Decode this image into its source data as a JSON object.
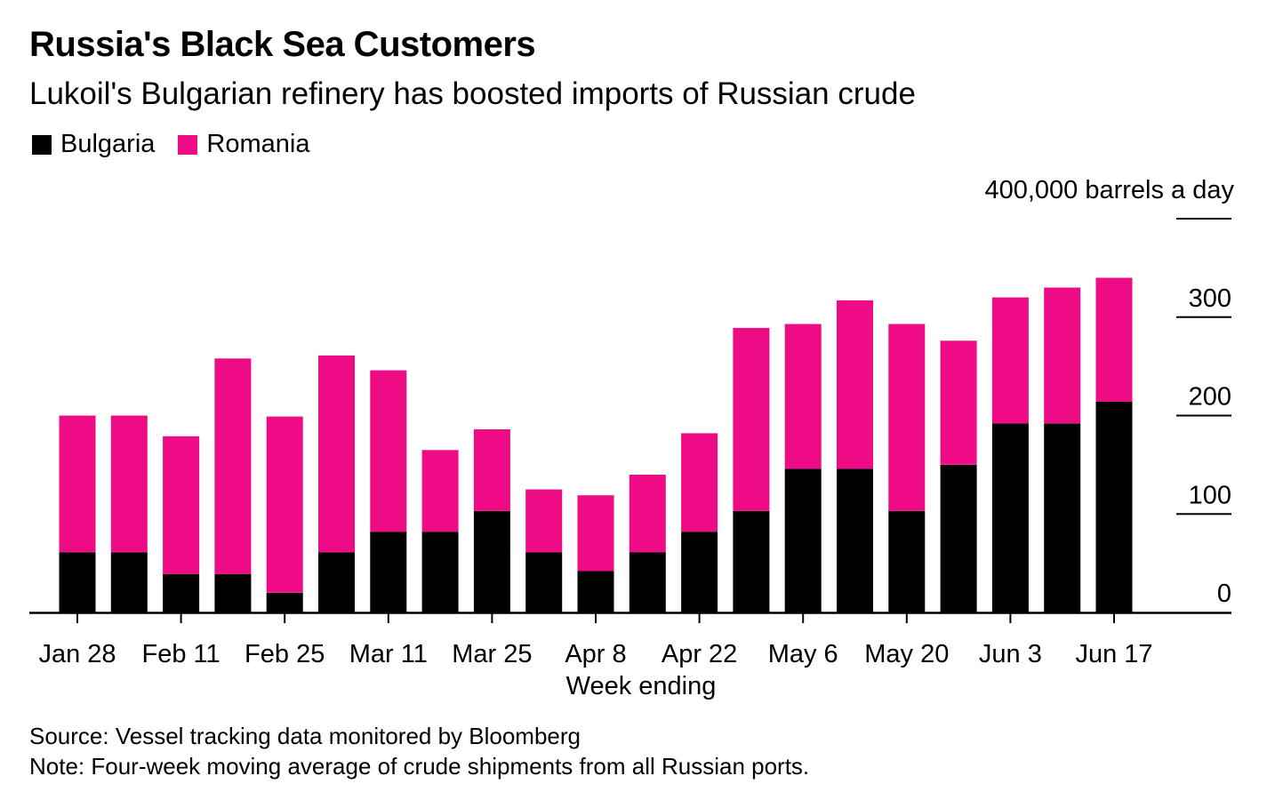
{
  "title": "Russia's Black Sea Customers",
  "subtitle": "Lukoil's Bulgarian refinery has boosted imports of Russian crude",
  "colors": {
    "bulgaria": "#000000",
    "romania": "#ee0c86",
    "axis": "#000000"
  },
  "chart_data": {
    "type": "bar",
    "stacked": true,
    "title": "Russia's Black Sea Customers",
    "subtitle": "Lukoil's Bulgarian refinery has boosted imports of Russian crude",
    "xlabel": "Week ending",
    "ylabel": "400,000 barrels a day",
    "ylim": [
      0,
      400
    ],
    "yticks": [
      0,
      100,
      200,
      300
    ],
    "ytick_labels": [
      "0",
      "100",
      "200",
      "300"
    ],
    "x_tick_labels": [
      "Jan 28",
      "Feb 11",
      "Feb 25",
      "Mar 11",
      "Mar 25",
      "Apr 8",
      "Apr 22",
      "May 6",
      "May 20",
      "Jun 3",
      "Jun 17"
    ],
    "x_tick_every": 2,
    "grid": false,
    "legend_position": "top-left",
    "series": [
      {
        "name": "Bulgaria",
        "color": "#000000",
        "values": [
          61,
          61,
          39,
          39,
          20,
          61,
          82,
          82,
          103,
          61,
          42,
          61,
          82,
          103,
          146,
          146,
          103,
          150,
          192,
          192,
          214
        ]
      },
      {
        "name": "Romania",
        "color": "#ee0c86",
        "values": [
          139,
          139,
          140,
          219,
          179,
          200,
          164,
          83,
          83,
          64,
          77,
          79,
          100,
          186,
          147,
          171,
          190,
          126,
          128,
          138,
          126
        ]
      }
    ]
  },
  "source": "Source: Vessel tracking data monitored by Bloomberg",
  "note": "Note: Four-week moving average of crude shipments from all Russian ports."
}
